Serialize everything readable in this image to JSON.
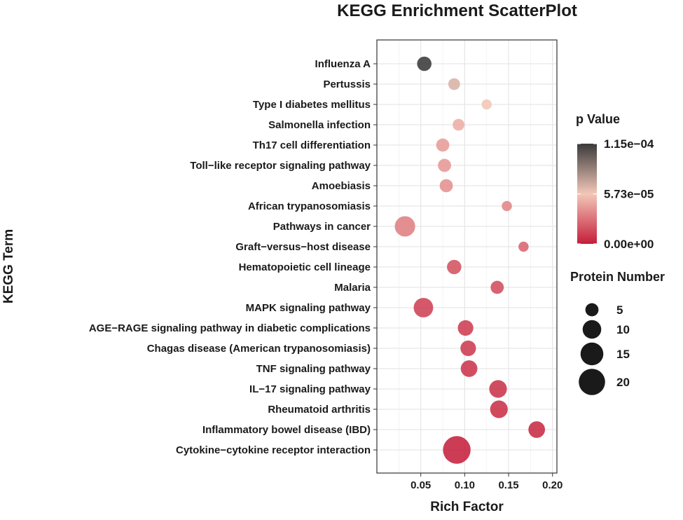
{
  "chart_data": {
    "type": "scatter",
    "title": "KEGG Enrichment ScatterPlot",
    "xlabel": "Rich Factor",
    "ylabel": "KEGG Term",
    "xlim": [
      0.0,
      0.205
    ],
    "xticks": [
      0.05,
      0.1,
      0.15,
      0.2
    ],
    "xtick_labels": [
      "0.05",
      "0.10",
      "0.15",
      "0.20"
    ],
    "grid": true,
    "points": [
      {
        "term": "Influenza A",
        "x": 0.054,
        "count": 6,
        "p": 0.000115
      },
      {
        "term": "Pertussis",
        "x": 0.088,
        "count": 4,
        "p": 6.6e-05
      },
      {
        "term": "Type I diabetes mellitus",
        "x": 0.125,
        "count": 3,
        "p": 5.8e-05
      },
      {
        "term": "Salmonella infection",
        "x": 0.093,
        "count": 4,
        "p": 4.9e-05
      },
      {
        "term": "Th17 cell differentiation",
        "x": 0.075,
        "count": 5,
        "p": 4.3e-05
      },
      {
        "term": "Toll−like receptor signaling pathway",
        "x": 0.077,
        "count": 5,
        "p": 4.1e-05
      },
      {
        "term": "Amoebiasis",
        "x": 0.079,
        "count": 5,
        "p": 3.9e-05
      },
      {
        "term": "African trypanosomiasis",
        "x": 0.148,
        "count": 3,
        "p": 3.5e-05
      },
      {
        "term": "Pathways in cancer",
        "x": 0.032,
        "count": 12,
        "p": 3.3e-05
      },
      {
        "term": "Graft−versus−host disease",
        "x": 0.167,
        "count": 3,
        "p": 2.4e-05
      },
      {
        "term": "Hematopoietic cell lineage",
        "x": 0.088,
        "count": 6,
        "p": 1.8e-05
      },
      {
        "term": "Malaria",
        "x": 0.137,
        "count": 5,
        "p": 1.6e-05
      },
      {
        "term": "MAPK signaling pathway",
        "x": 0.053,
        "count": 11,
        "p": 1.2e-05
      },
      {
        "term": "AGE−RAGE signaling pathway in diabetic complications",
        "x": 0.101,
        "count": 7,
        "p": 1.1e-05
      },
      {
        "term": "Chagas disease (American trypanosomiasis)",
        "x": 0.104,
        "count": 7,
        "p": 1e-05
      },
      {
        "term": "TNF signaling pathway",
        "x": 0.105,
        "count": 8,
        "p": 8e-06
      },
      {
        "term": "IL−17 signaling pathway",
        "x": 0.138,
        "count": 9,
        "p": 7e-06
      },
      {
        "term": "Rheumatoid arthritis",
        "x": 0.139,
        "count": 9,
        "p": 6e-06
      },
      {
        "term": "Inflammatory bowel disease (IBD)",
        "x": 0.182,
        "count": 8,
        "p": 4e-06
      },
      {
        "term": "Cytokine−cytokine receptor interaction",
        "x": 0.091,
        "count": 22,
        "p": 1e-06
      }
    ],
    "color_legend": {
      "title": "p Value",
      "labels": [
        "1.15e−04",
        "5.73e−05",
        "0.00e+00"
      ],
      "values": [
        0.000115,
        5.73e-05,
        0.0
      ],
      "colors": [
        "#3a3a3a",
        "#f3c7b8",
        "#c41e3a"
      ]
    },
    "size_legend": {
      "title": "Protein Number",
      "labels": [
        "5",
        "10",
        "15",
        "20"
      ],
      "values": [
        5,
        10,
        15,
        20
      ]
    }
  }
}
